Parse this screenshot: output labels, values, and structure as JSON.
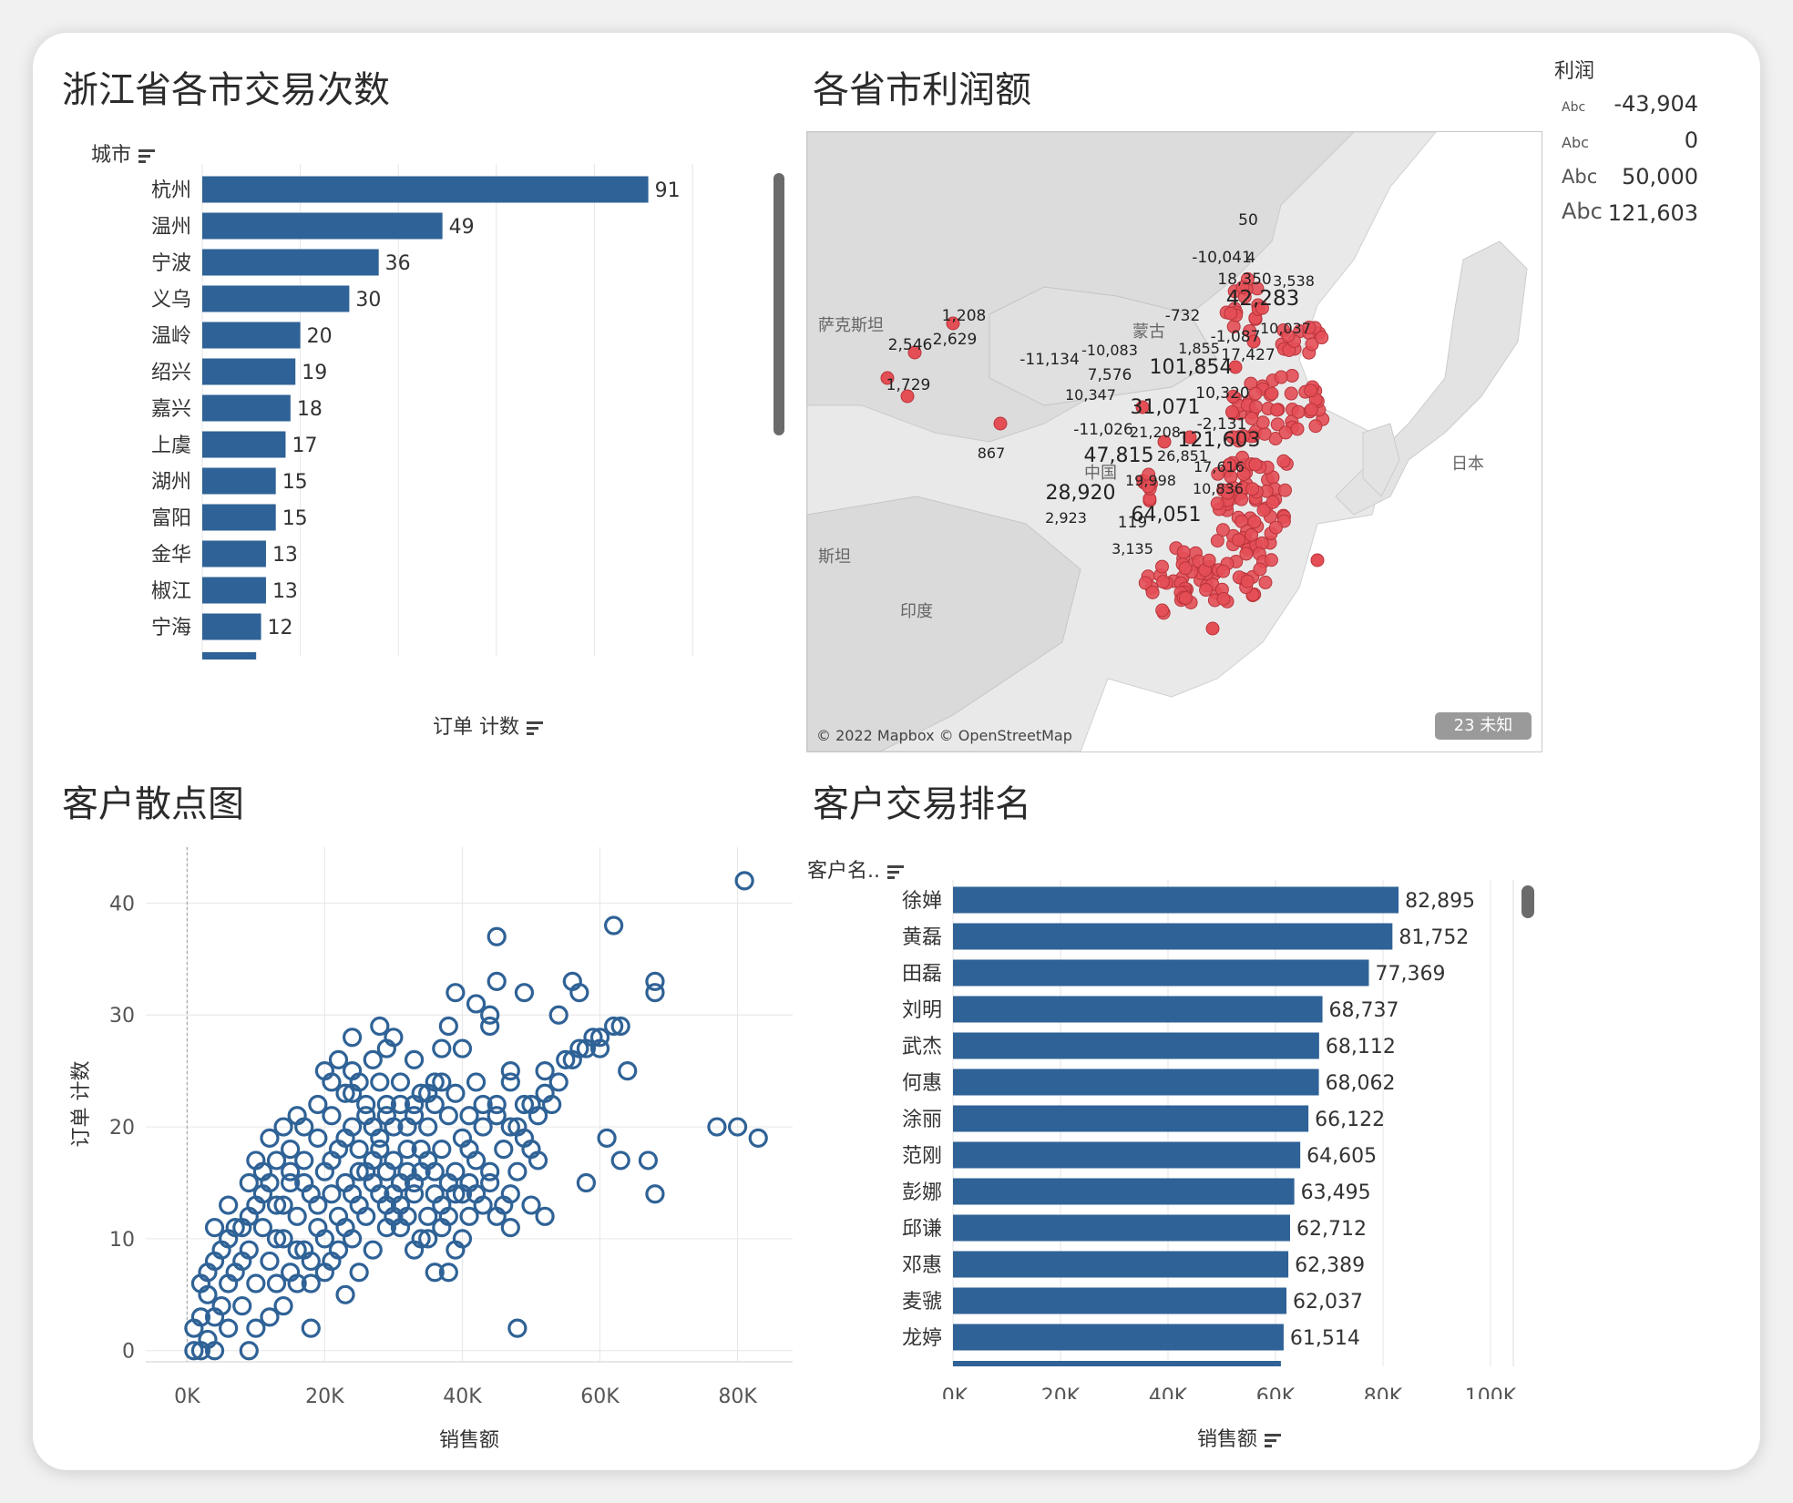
{
  "colors": {
    "bar": "#2f6296",
    "point": "#e44e55",
    "pointStroke": "#b9343b",
    "grid": "#e6e6e6",
    "axisText": "#555555"
  },
  "panels": {
    "city_orders": {
      "title": "浙江省各市交易次数",
      "dim_label": "城市",
      "measure_label": "订单 计数",
      "icons": [
        "sort-icon"
      ]
    },
    "profit_map": {
      "title": "各省市利润额",
      "legend_title": "利润",
      "legend": [
        {
          "abc": "Abc",
          "value": "-43,904"
        },
        {
          "abc": "Abc",
          "value": "0"
        },
        {
          "abc": "Abc",
          "value": "50,000"
        },
        {
          "abc": "Abc",
          "value": "121,603"
        }
      ],
      "country_labels": [
        "蒙古",
        "中国",
        "日本",
        "印度",
        "萨克斯坦",
        "斯坦"
      ],
      "copyright": "© 2022 Mapbox © OpenStreetMap",
      "unknown_badge": "23 未知"
    },
    "customer_scatter": {
      "title": "客户散点图",
      "xlabel": "销售额",
      "ylabel": "订单 计数"
    },
    "customer_rank": {
      "title": "客户交易排名",
      "dim_label": "客户名..",
      "measure_label": "销售额"
    }
  },
  "chart_data": [
    {
      "type": "bar",
      "orientation": "horizontal",
      "title": "浙江省各市交易次数",
      "categories": [
        "杭州",
        "温州",
        "宁波",
        "义乌",
        "温岭",
        "绍兴",
        "嘉兴",
        "上虞",
        "湖州",
        "富阳",
        "金华",
        "椒江",
        "宁海"
      ],
      "values": [
        91,
        49,
        36,
        30,
        20,
        19,
        18,
        17,
        15,
        15,
        13,
        13,
        12
      ],
      "xlabel": "订单 计数",
      "ylabel": "城市",
      "xlim": [
        0,
        105
      ],
      "xticks": [
        0,
        20,
        40,
        60,
        80,
        100
      ],
      "grid": true
    },
    {
      "type": "scatter",
      "title": "各省市利润额",
      "basemap": "East Asia",
      "labeled_values": [
        "50",
        "-10,041",
        "4",
        "18,350",
        "3,538",
        "42,283",
        "-732",
        "10,037",
        "-1,087",
        "1,208",
        "2,629",
        "2,546",
        "-10,083",
        "1,855",
        "17,427",
        "-11,134",
        "7,576",
        "101,854",
        "1,729",
        "10,347",
        "10,320",
        "31,071",
        "-11,026",
        "21,208",
        "-2,131",
        "121,603",
        "867",
        "47,815",
        "26,851",
        "17,616",
        "19,998",
        "10,836",
        "28,920",
        "2,923",
        "119",
        "64,051",
        "3,135"
      ]
    },
    {
      "type": "scatter",
      "title": "客户散点图",
      "xlabel": "销售额",
      "ylabel": "订单 计数",
      "xlim": [
        -6000,
        88000
      ],
      "ylim": [
        -1,
        45
      ],
      "xticks": [
        0,
        20000,
        40000,
        60000,
        80000
      ],
      "xtick_labels": [
        "0K",
        "20K",
        "40K",
        "60K",
        "80K"
      ],
      "yticks": [
        0,
        10,
        20,
        30,
        40
      ],
      "points": [
        [
          81000,
          42
        ],
        [
          62000,
          38
        ],
        [
          45000,
          37
        ],
        [
          45000,
          33
        ],
        [
          68000,
          33
        ],
        [
          56000,
          33
        ],
        [
          68000,
          32
        ],
        [
          39000,
          32
        ],
        [
          49000,
          32
        ],
        [
          42000,
          31
        ],
        [
          57000,
          32
        ],
        [
          44000,
          30
        ],
        [
          54000,
          30
        ],
        [
          62000,
          29
        ],
        [
          63000,
          29
        ],
        [
          38000,
          29
        ],
        [
          28000,
          29
        ],
        [
          24000,
          28
        ],
        [
          30000,
          28
        ],
        [
          44000,
          29
        ],
        [
          59000,
          28
        ],
        [
          60000,
          28
        ],
        [
          57000,
          27
        ],
        [
          37000,
          27
        ],
        [
          40000,
          27
        ],
        [
          29000,
          27
        ],
        [
          33000,
          26
        ],
        [
          55000,
          26
        ],
        [
          64000,
          25
        ],
        [
          52000,
          25
        ],
        [
          47000,
          25
        ],
        [
          42000,
          24
        ],
        [
          36000,
          24
        ],
        [
          24000,
          25
        ],
        [
          80000,
          20
        ],
        [
          83000,
          19
        ],
        [
          77000,
          20
        ],
        [
          61000,
          19
        ],
        [
          63000,
          17
        ],
        [
          67000,
          17
        ],
        [
          68000,
          14
        ],
        [
          58000,
          15
        ],
        [
          51000,
          17
        ],
        [
          47000,
          14
        ],
        [
          50000,
          13
        ],
        [
          52000,
          12
        ],
        [
          48000,
          2
        ],
        [
          36000,
          7
        ],
        [
          38000,
          7
        ],
        [
          18000,
          2
        ],
        [
          9000,
          0
        ],
        [
          13000,
          6
        ],
        [
          4000,
          0
        ],
        [
          2000,
          0
        ],
        [
          1000,
          0
        ],
        [
          3000,
          1
        ],
        [
          1000,
          2
        ],
        [
          2000,
          3
        ],
        [
          4000,
          3
        ],
        [
          3000,
          5
        ],
        [
          5000,
          4
        ],
        [
          6000,
          6
        ],
        [
          2000,
          6
        ],
        [
          4000,
          8
        ],
        [
          6000,
          10
        ],
        [
          8000,
          8
        ],
        [
          10000,
          6
        ],
        [
          12000,
          8
        ],
        [
          14000,
          10
        ],
        [
          16000,
          12
        ],
        [
          18000,
          14
        ],
        [
          20000,
          16
        ],
        [
          22000,
          18
        ],
        [
          24000,
          20
        ],
        [
          26000,
          22
        ],
        [
          28000,
          24
        ],
        [
          30000,
          20
        ],
        [
          32000,
          18
        ],
        [
          34000,
          16
        ],
        [
          36000,
          14
        ],
        [
          38000,
          12
        ],
        [
          40000,
          10
        ],
        [
          42000,
          14
        ],
        [
          44000,
          16
        ],
        [
          46000,
          18
        ],
        [
          48000,
          20
        ],
        [
          50000,
          22
        ],
        [
          52000,
          23
        ],
        [
          54000,
          24
        ],
        [
          56000,
          26
        ],
        [
          58000,
          27
        ],
        [
          60000,
          27
        ],
        [
          20000,
          10
        ],
        [
          22000,
          12
        ],
        [
          24000,
          14
        ],
        [
          26000,
          16
        ],
        [
          28000,
          18
        ],
        [
          30000,
          14
        ],
        [
          32000,
          12
        ],
        [
          34000,
          10
        ],
        [
          18000,
          8
        ],
        [
          16000,
          6
        ],
        [
          14000,
          4
        ],
        [
          12000,
          3
        ],
        [
          10000,
          2
        ],
        [
          8000,
          4
        ],
        [
          6000,
          2
        ],
        [
          7000,
          7
        ],
        [
          9000,
          9
        ],
        [
          11000,
          11
        ],
        [
          13000,
          13
        ],
        [
          15000,
          15
        ],
        [
          17000,
          17
        ],
        [
          19000,
          19
        ],
        [
          21000,
          21
        ],
        [
          23000,
          23
        ],
        [
          25000,
          24
        ],
        [
          27000,
          26
        ],
        [
          29000,
          22
        ],
        [
          31000,
          24
        ],
        [
          33000,
          22
        ],
        [
          35000,
          20
        ],
        [
          37000,
          18
        ],
        [
          39000,
          16
        ],
        [
          41000,
          18
        ],
        [
          43000,
          20
        ],
        [
          45000,
          22
        ],
        [
          47000,
          24
        ],
        [
          49000,
          22
        ],
        [
          51000,
          21
        ],
        [
          53000,
          22
        ],
        [
          35000,
          17
        ],
        [
          33000,
          15
        ],
        [
          31000,
          13
        ],
        [
          29000,
          11
        ],
        [
          27000,
          9
        ],
        [
          25000,
          7
        ],
        [
          23000,
          5
        ],
        [
          21000,
          8
        ],
        [
          19000,
          11
        ],
        [
          17000,
          9
        ],
        [
          15000,
          7
        ],
        [
          13000,
          10
        ],
        [
          11000,
          14
        ],
        [
          9000,
          12
        ],
        [
          7000,
          11
        ],
        [
          5000,
          9
        ],
        [
          3000,
          7
        ],
        [
          15000,
          18
        ],
        [
          17000,
          20
        ],
        [
          19000,
          22
        ],
        [
          21000,
          24
        ],
        [
          10000,
          17
        ],
        [
          12000,
          19
        ],
        [
          14000,
          20
        ],
        [
          16000,
          21
        ],
        [
          20000,
          25
        ],
        [
          22000,
          26
        ],
        [
          24000,
          23
        ],
        [
          26000,
          21
        ],
        [
          28000,
          19
        ],
        [
          30000,
          17
        ],
        [
          32000,
          20
        ],
        [
          34000,
          23
        ],
        [
          36000,
          22
        ],
        [
          38000,
          21
        ],
        [
          40000,
          19
        ],
        [
          42000,
          17
        ],
        [
          44000,
          15
        ],
        [
          46000,
          13
        ],
        [
          48000,
          16
        ],
        [
          50000,
          18
        ],
        [
          40000,
          14
        ],
        [
          38000,
          15
        ],
        [
          36000,
          16
        ],
        [
          34000,
          18
        ],
        [
          32000,
          16
        ],
        [
          30000,
          12
        ],
        [
          28000,
          14
        ],
        [
          26000,
          12
        ],
        [
          24000,
          10
        ],
        [
          22000,
          9
        ],
        [
          20000,
          7
        ],
        [
          18000,
          6
        ],
        [
          16000,
          9
        ],
        [
          14000,
          13
        ],
        [
          12000,
          15
        ],
        [
          10000,
          13
        ],
        [
          8000,
          11
        ],
        [
          6000,
          13
        ],
        [
          4000,
          11
        ],
        [
          9000,
          15
        ],
        [
          11000,
          16
        ],
        [
          13000,
          17
        ],
        [
          15000,
          16
        ],
        [
          17000,
          15
        ],
        [
          19000,
          13
        ],
        [
          21000,
          14
        ],
        [
          23000,
          15
        ],
        [
          25000,
          16
        ],
        [
          27000,
          17
        ],
        [
          29000,
          16
        ],
        [
          31000,
          15
        ],
        [
          33000,
          14
        ],
        [
          35000,
          12
        ],
        [
          37000,
          13
        ],
        [
          39000,
          14
        ],
        [
          41000,
          15
        ],
        [
          43000,
          13
        ],
        [
          45000,
          12
        ],
        [
          47000,
          11
        ],
        [
          23000,
          11
        ],
        [
          25000,
          13
        ],
        [
          27000,
          15
        ],
        [
          29000,
          13
        ],
        [
          31000,
          11
        ],
        [
          33000,
          9
        ],
        [
          35000,
          10
        ],
        [
          37000,
          11
        ],
        [
          39000,
          9
        ],
        [
          41000,
          12
        ],
        [
          21000,
          17
        ],
        [
          23000,
          19
        ],
        [
          25000,
          18
        ],
        [
          27000,
          20
        ],
        [
          29000,
          21
        ],
        [
          31000,
          22
        ],
        [
          33000,
          21
        ],
        [
          35000,
          23
        ],
        [
          37000,
          24
        ],
        [
          39000,
          23
        ],
        [
          41000,
          21
        ],
        [
          43000,
          22
        ],
        [
          45000,
          21
        ],
        [
          47000,
          20
        ],
        [
          49000,
          19
        ]
      ]
    },
    {
      "type": "bar",
      "orientation": "horizontal",
      "title": "客户交易排名",
      "categories": [
        "徐婵",
        "黄磊",
        "田磊",
        "刘明",
        "武杰",
        "何惠",
        "涂丽",
        "范刚",
        "彭娜",
        "邱谦",
        "邓惠",
        "麦虢",
        "龙婷"
      ],
      "values": [
        82895,
        81752,
        77369,
        68737,
        68112,
        68062,
        66122,
        64605,
        63495,
        62712,
        62389,
        62037,
        61514
      ],
      "value_labels": [
        "82,895",
        "81,752",
        "77,369",
        "68,737",
        "68,112",
        "68,062",
        "66,122",
        "64,605",
        "63,495",
        "62,712",
        "62,389",
        "62,037",
        "61,514"
      ],
      "xlabel": "销售额",
      "ylabel": "客户名..",
      "xlim": [
        0,
        105000
      ],
      "xticks": [
        0,
        20000,
        40000,
        60000,
        80000,
        100000
      ],
      "xtick_labels": [
        "0K",
        "20K",
        "40K",
        "60K",
        "80K",
        "100K"
      ],
      "grid": true
    }
  ]
}
